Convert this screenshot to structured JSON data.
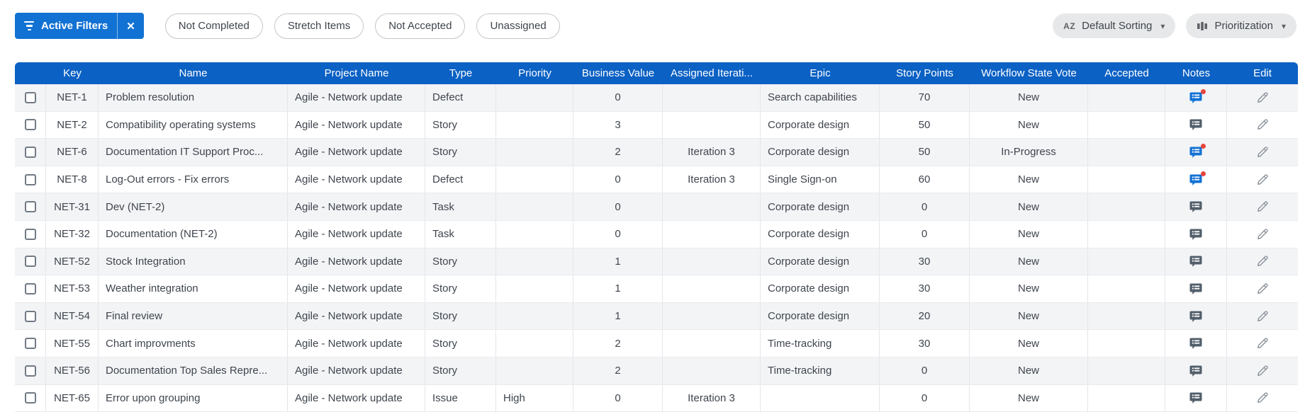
{
  "toolbar": {
    "active_filters_label": "Active Filters",
    "chips": [
      "Not Completed",
      "Stretch Items",
      "Not Accepted",
      "Unassigned"
    ],
    "sorting_label": "Default Sorting",
    "view_label": "Prioritization"
  },
  "icons": {
    "close": "✕",
    "caret_down": "▾",
    "sort_az": "AZ"
  },
  "colors": {
    "accent_blue": "#1272d4",
    "header_blue": "#0b61c4",
    "notes_gray": "#525f6b",
    "unread_red": "#e8453c"
  },
  "table": {
    "columns": [
      "Key",
      "Name",
      "Project Name",
      "Type",
      "Priority",
      "Business Value",
      "Assigned Iterati...",
      "Epic",
      "Story Points",
      "Workflow State Vote",
      "Accepted",
      "Notes",
      "Edit"
    ],
    "rows": [
      {
        "key": "NET-1",
        "name": "Problem resolution",
        "project": "Agile - Network update",
        "type": "Defect",
        "priority": "",
        "business_value": "0",
        "iteration": "",
        "epic": "Search capabilities",
        "story_points": "70",
        "workflow_state": "New",
        "accepted": "",
        "notes_unread": true
      },
      {
        "key": "NET-2",
        "name": "Compatibility operating systems",
        "project": "Agile - Network update",
        "type": "Story",
        "priority": "",
        "business_value": "3",
        "iteration": "",
        "epic": "Corporate design",
        "story_points": "50",
        "workflow_state": "New",
        "accepted": "",
        "notes_unread": false
      },
      {
        "key": "NET-6",
        "name": "Documentation IT Support Proc...",
        "project": "Agile - Network update",
        "type": "Story",
        "priority": "",
        "business_value": "2",
        "iteration": "Iteration 3",
        "epic": "Corporate design",
        "story_points": "50",
        "workflow_state": "In-Progress",
        "accepted": "",
        "notes_unread": true
      },
      {
        "key": "NET-8",
        "name": "Log-Out errors - Fix errors",
        "project": "Agile - Network update",
        "type": "Defect",
        "priority": "",
        "business_value": "0",
        "iteration": "Iteration 3",
        "epic": "Single Sign-on",
        "story_points": "60",
        "workflow_state": "New",
        "accepted": "",
        "notes_unread": true
      },
      {
        "key": "NET-31",
        "name": "Dev (NET-2)",
        "project": "Agile - Network update",
        "type": "Task",
        "priority": "",
        "business_value": "0",
        "iteration": "",
        "epic": "Corporate design",
        "story_points": "0",
        "workflow_state": "New",
        "accepted": "",
        "notes_unread": false
      },
      {
        "key": "NET-32",
        "name": "Documentation (NET-2)",
        "project": "Agile - Network update",
        "type": "Task",
        "priority": "",
        "business_value": "0",
        "iteration": "",
        "epic": "Corporate design",
        "story_points": "0",
        "workflow_state": "New",
        "accepted": "",
        "notes_unread": false
      },
      {
        "key": "NET-52",
        "name": "Stock Integration",
        "project": "Agile - Network update",
        "type": "Story",
        "priority": "",
        "business_value": "1",
        "iteration": "",
        "epic": "Corporate design",
        "story_points": "30",
        "workflow_state": "New",
        "accepted": "",
        "notes_unread": false
      },
      {
        "key": "NET-53",
        "name": "Weather integration",
        "project": "Agile - Network update",
        "type": "Story",
        "priority": "",
        "business_value": "1",
        "iteration": "",
        "epic": "Corporate design",
        "story_points": "30",
        "workflow_state": "New",
        "accepted": "",
        "notes_unread": false
      },
      {
        "key": "NET-54",
        "name": "Final review",
        "project": "Agile - Network update",
        "type": "Story",
        "priority": "",
        "business_value": "1",
        "iteration": "",
        "epic": "Corporate design",
        "story_points": "20",
        "workflow_state": "New",
        "accepted": "",
        "notes_unread": false
      },
      {
        "key": "NET-55",
        "name": "Chart improvments",
        "project": "Agile - Network update",
        "type": "Story",
        "priority": "",
        "business_value": "2",
        "iteration": "",
        "epic": "Time-tracking",
        "story_points": "30",
        "workflow_state": "New",
        "accepted": "",
        "notes_unread": false
      },
      {
        "key": "NET-56",
        "name": "Documentation Top Sales Repre...",
        "project": "Agile - Network update",
        "type": "Story",
        "priority": "",
        "business_value": "2",
        "iteration": "",
        "epic": "Time-tracking",
        "story_points": "0",
        "workflow_state": "New",
        "accepted": "",
        "notes_unread": false
      },
      {
        "key": "NET-65",
        "name": "Error upon grouping",
        "project": "Agile - Network update",
        "type": "Issue",
        "priority": "High",
        "business_value": "0",
        "iteration": "Iteration 3",
        "epic": "",
        "story_points": "0",
        "workflow_state": "New",
        "accepted": "",
        "notes_unread": false
      }
    ]
  }
}
